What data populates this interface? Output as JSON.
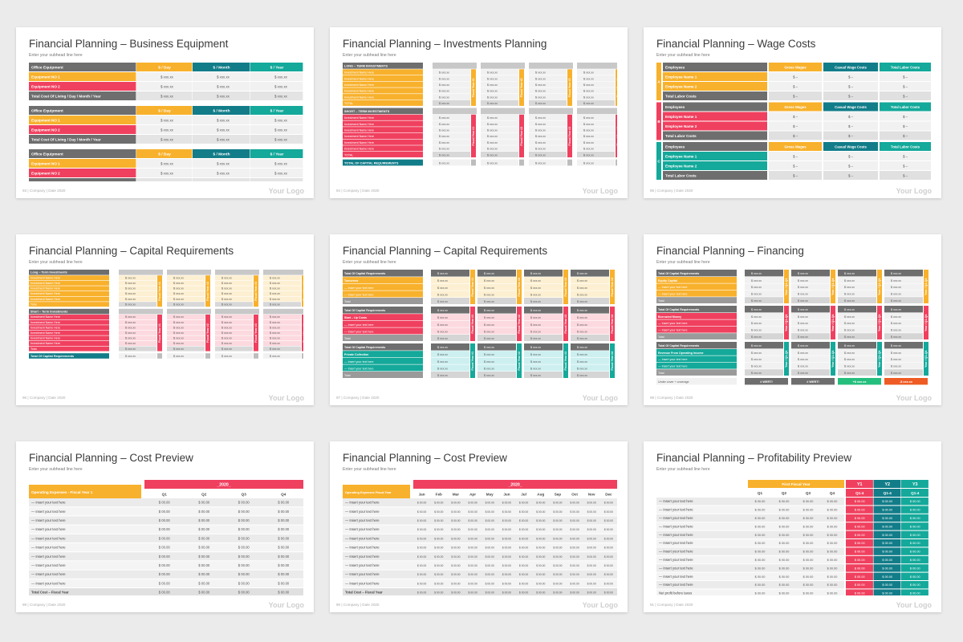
{
  "common": {
    "subhead": "Enter your subhead line here",
    "footer": "| Company | Date 2020",
    "logo": "Your Logo"
  },
  "colors": {
    "yellow": "#f8b12c",
    "red": "#f0405f",
    "teal": "#14a99a",
    "dark": "#6e6e6e",
    "darkteal": "#127d89",
    "light": "#f1f1f1",
    "white": "#ffffff",
    "lightyellow": "#fdf0d2",
    "lightred": "#fcd9df",
    "lightteal": "#cdeff0",
    "orange": "#ef5b24",
    "green": "#25bf7d"
  },
  "slides": [
    {
      "id": "business-equipment",
      "title": "Financial Planning – Business Equipment",
      "page": "93",
      "header": [
        "Office Equipment",
        "$ / Day",
        "$ / Month",
        "$ / Year"
      ],
      "rows": [
        "Equipment NO 1",
        "Equipment NO 2",
        "Total Cost Of Living / Day / Month / Year"
      ],
      "value": "$ xxx.xx",
      "blocks": 3
    },
    {
      "id": "investments-planning",
      "title": "Financial Planning – Investments Planning",
      "page": "94",
      "long_label": "LONG – TERM INVESTMENTS",
      "short_label": "SHORT – TERM INVESTMENTS",
      "item": "Investment Name Here",
      "total": "TOTAL",
      "grand_total": "TOTAL OF CAPITAL REQUIREMENTS",
      "value": "$ xxx.xx",
      "fiscal": [
        "Fiscal Year #1",
        "Fiscal Year #2",
        "Fiscal Year #3",
        "Fiscal Year #4"
      ]
    },
    {
      "id": "wage-costs",
      "title": "Financial Planning – Wage Costs",
      "page": "95",
      "groups": [
        "A",
        "B",
        "C"
      ],
      "header": [
        "Employees",
        "Gross Wages",
        "Casual Wage Costs",
        "Total Labor Costs"
      ],
      "rows": [
        "Employee Name 1",
        "Employee Name 2"
      ],
      "total": "Total Labor Costs",
      "value": "$ –"
    },
    {
      "id": "capital-requirements-1",
      "title": "Financial Planning – Capital Requirements",
      "page": "96",
      "long_label": "Long – Term Investments",
      "short_label": "Short – Term Investments",
      "item": "Investment Name Here",
      "total": "Total",
      "grand_total": "Total Of Capital Requirements",
      "value": "$ xxx.xx",
      "fiscal": [
        "Fiscal Year #1",
        "Fiscal Year #2",
        "Fiscal Year #3",
        "Fiscal Year #4"
      ]
    },
    {
      "id": "capital-requirements-2",
      "title": "Financial Planning – Capital Requirements",
      "page": "97",
      "sections": [
        {
          "header": "Total Of Capital Requirements",
          "label": "Tomorrow",
          "color": "yellow"
        },
        {
          "header": "Total Of Capital Requirements",
          "label": "Start – Up Costs",
          "color": "red"
        },
        {
          "header": "Total Of Capital Requirements",
          "label": "Private Collection",
          "color": "teal"
        }
      ],
      "item": "— Insert your text here",
      "total": "Total",
      "value": "$ xxx.xx",
      "fiscal": [
        "Fiscal Year #1",
        "Fiscal Year #2",
        "Fiscal Year #3",
        "Fiscal Year #4"
      ]
    },
    {
      "id": "financing",
      "title": "Financial Planning – Financing",
      "page": "98",
      "sections": [
        {
          "header": "Total Of Capital Requirements",
          "label": "Equity Capital",
          "color": "yellow"
        },
        {
          "header": "Total Of Capital Requirements",
          "label": "Borrowed Money",
          "color": "red"
        },
        {
          "header": "Total Of Capital Requirements",
          "label": "Revenue From Operating Income",
          "color": "teal"
        }
      ],
      "item": "— Insert your text here",
      "total": "Total",
      "value": "$ xxx.xx",
      "years": [
        "Year / Q1-Q4",
        "Year / Q1-Q4",
        "Year / Q1-Q4",
        "Year / Q1-Q4"
      ],
      "footer_row": {
        "label": "Under cover + coverage",
        "cells": [
          "# WERT!",
          "# WERT!",
          "+$ xxx.xx",
          "-$ xxx.xx"
        ]
      }
    },
    {
      "id": "cost-preview-quarters",
      "title": "Financial Planning – Cost Preview",
      "page": "99",
      "year": "_2020_",
      "heading": "Operating Expenses - Fiscal Year 1",
      "cols": [
        "Q1",
        "Q2",
        "Q3",
        "Q4"
      ],
      "item": "— Insert your text here",
      "total": "Total Cost – Fiscal Year",
      "value": "$ 00.00",
      "rows": 10
    },
    {
      "id": "cost-preview-months",
      "title": "Financial Planning – Cost Preview",
      "page": "90",
      "year": "_2020_",
      "heading": "Operating Expenses Fiscal Year",
      "cols": [
        "Jan",
        "Feb",
        "Mar",
        "Apr",
        "May",
        "Jun",
        "Jul",
        "Aug",
        "Sep",
        "Oct",
        "Nov",
        "Dec"
      ],
      "item": "— Insert your text here",
      "total": "Total Cost – Fiscal Year",
      "value": "$ 00.00",
      "rows": 10
    },
    {
      "id": "profitability-preview",
      "title": "Financial Planning – Profitability Preview",
      "page": "91",
      "first_year": "First Fiscal Year",
      "cols": [
        "Q1",
        "Q2",
        "Q3",
        "Q4"
      ],
      "years": [
        "Y1",
        "Y2",
        "Y3"
      ],
      "year_cols": [
        "Q1-4",
        "Q1-4",
        "Q1-4"
      ],
      "item": "— Insert your text here",
      "net": "Net profit before taxes",
      "value": "$ 00.00",
      "rows": 11
    }
  ]
}
